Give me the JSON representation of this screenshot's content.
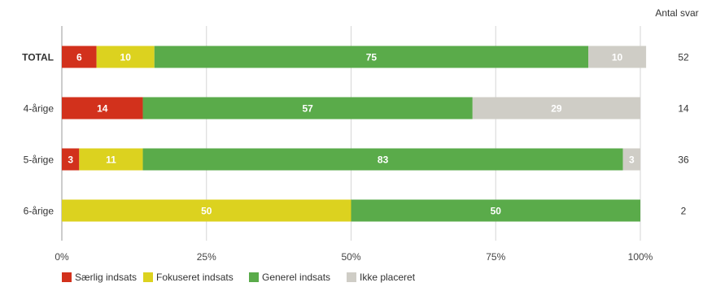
{
  "chart_data": {
    "type": "bar",
    "orientation": "horizontal",
    "stacked": true,
    "categories": [
      "TOTAL",
      "4-årige",
      "5-årige",
      "6-årige"
    ],
    "series": [
      {
        "name": "Særlig indsats",
        "color": "#d2311c",
        "values": [
          6,
          14,
          3,
          0
        ]
      },
      {
        "name": "Fokuseret indsats",
        "color": "#dcd21f",
        "values": [
          10,
          0,
          11,
          50
        ]
      },
      {
        "name": "Generel indsats",
        "color": "#5aab4a",
        "values": [
          75,
          57,
          83,
          50
        ]
      },
      {
        "name": "Ikke placeret",
        "color": "#cfcdc6",
        "values": [
          10,
          29,
          3,
          0
        ]
      }
    ],
    "x_ticks": [
      "0%",
      "25%",
      "50%",
      "75%",
      "100%"
    ],
    "xlim": [
      0,
      100
    ],
    "grid": true,
    "legend_position": "bottom-left",
    "count_header": "Antal svar",
    "counts": [
      "52",
      "14",
      "36",
      "2"
    ]
  }
}
